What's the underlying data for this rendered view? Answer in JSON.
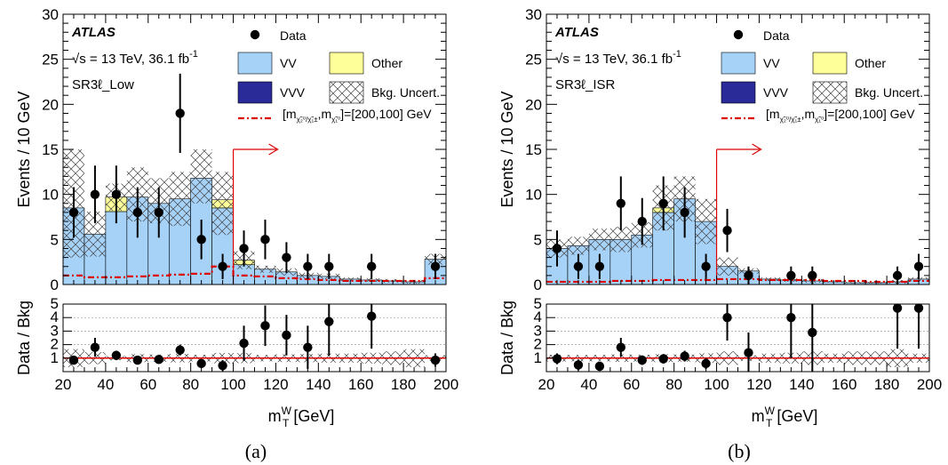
{
  "chart_data": [
    {
      "type": "bar",
      "caption": "(a)",
      "experiment": "ATLAS",
      "energy_label": "√s = 13 TeV, 36.1 fb",
      "energy_sup": "-1",
      "region_label": "SR3ℓ_Low",
      "ylabel": "Events / 10 GeV",
      "ratio_ylabel": "Data / Bkg",
      "xlabel": "m",
      "xlabel_sup": "W",
      "xlabel_sub": "T",
      "xlabel_unit": " [GeV]",
      "xlim": [
        20,
        200
      ],
      "ylim": [
        0,
        30
      ],
      "ratio_ylim": [
        0,
        5
      ],
      "xticks": [
        "20",
        "40",
        "60",
        "80",
        "100",
        "120",
        "140",
        "160",
        "180",
        "200"
      ],
      "yticks": [
        "0",
        "5",
        "10",
        "15",
        "20",
        "25",
        "30"
      ],
      "ratio_yticks": [
        "1",
        "2",
        "3",
        "4",
        "5"
      ],
      "legend": {
        "data": "Data",
        "vv": "VV",
        "other": "Other",
        "vvv": "VVV",
        "unc": "Bkg. Uncert.",
        "signal": "[m",
        "signal_tail": "]=[200,100] GeV"
      },
      "colors": {
        "vv": "#a6d2f8",
        "other": "#ffff99",
        "vvv": "#2a2a99",
        "signal": "#dd0000",
        "cut": "#dd0000"
      },
      "cut_x": 100,
      "bin_edges": [
        20,
        30,
        40,
        50,
        60,
        70,
        80,
        90,
        100,
        110,
        120,
        130,
        140,
        150,
        160,
        170,
        180,
        190,
        200
      ],
      "vv": [
        8.5,
        5.6,
        8.1,
        9.7,
        9.0,
        9.5,
        11.8,
        8.5,
        2.2,
        1.7,
        1.4,
        1.0,
        0.9,
        0.6,
        0.5,
        0.4,
        0.3,
        2.8
      ],
      "other": [
        0,
        0,
        1.6,
        0,
        0,
        0,
        0,
        0.9,
        0.5,
        0,
        0,
        0,
        0,
        0,
        0,
        0,
        0,
        0
      ],
      "vvv": [
        0,
        0,
        0,
        0,
        0,
        0,
        0,
        0,
        0,
        0,
        0,
        0,
        0,
        0,
        0,
        0,
        0,
        0
      ],
      "total": [
        9.0,
        5.6,
        9.7,
        10.0,
        9.3,
        9.5,
        12.0,
        9.0,
        2.7,
        1.7,
        1.4,
        1.0,
        0.9,
        0.6,
        0.5,
        0.4,
        0.3,
        2.8
      ],
      "unc": [
        6.0,
        2.5,
        1.5,
        3.0,
        2.5,
        3.0,
        3.0,
        3.5,
        1.0,
        0.4,
        0.4,
        0.3,
        0.3,
        0.2,
        0.2,
        0.2,
        0.2,
        0.6
      ],
      "signal": [
        1.0,
        0.8,
        0.8,
        0.9,
        1.0,
        1.1,
        1.2,
        2.0,
        1.0,
        0.9,
        0.7,
        0.6,
        0.5,
        0.4,
        0.4,
        0.4,
        0.4,
        0.7
      ],
      "data_x": [
        25,
        35,
        45,
        55,
        65,
        75,
        85,
        95,
        105,
        115,
        125,
        135,
        145,
        165,
        195
      ],
      "data_y": [
        8,
        10,
        10,
        8,
        8,
        19,
        5,
        2,
        4,
        5,
        3,
        2,
        2,
        2,
        2
      ],
      "data_err": [
        2.8,
        3.2,
        3.2,
        2.8,
        2.8,
        4.4,
        2.2,
        1.4,
        2.0,
        2.2,
        1.7,
        1.4,
        1.4,
        1.4,
        1.4
      ],
      "ratio_y": [
        0.85,
        1.8,
        1.2,
        0.85,
        0.9,
        1.6,
        0.6,
        0.45,
        2.1,
        3.4,
        2.7,
        1.8,
        3.7,
        4.1,
        0.85
      ],
      "ratio_err": [
        0.3,
        0.7,
        0.35,
        0.3,
        0.3,
        0.4,
        0.3,
        0.4,
        1.3,
        1.5,
        1.5,
        1.6,
        2.5,
        2.4,
        0.5
      ]
    },
    {
      "type": "bar",
      "caption": "(b)",
      "experiment": "ATLAS",
      "energy_label": "√s = 13 TeV, 36.1 fb",
      "energy_sup": "-1",
      "region_label": "SR3ℓ_ISR",
      "ylabel": "Events / 10 GeV",
      "ratio_ylabel": "Data / Bkg",
      "xlabel": "m",
      "xlabel_sup": "W",
      "xlabel_sub": "T",
      "xlabel_unit": " [GeV]",
      "xlim": [
        20,
        200
      ],
      "ylim": [
        0,
        30
      ],
      "ratio_ylim": [
        0,
        5
      ],
      "xticks": [
        "20",
        "40",
        "60",
        "80",
        "100",
        "120",
        "140",
        "160",
        "180",
        "200"
      ],
      "yticks": [
        "0",
        "5",
        "10",
        "15",
        "20",
        "25",
        "30"
      ],
      "ratio_yticks": [
        "1",
        "2",
        "3",
        "4",
        "5"
      ],
      "legend": {
        "data": "Data",
        "vv": "VV",
        "other": "Other",
        "vvv": "VVV",
        "unc": "Bkg. Uncert.",
        "signal": "[m",
        "signal_tail": "]=[200,100] GeV"
      },
      "colors": {
        "vv": "#a6d2f8",
        "other": "#ffff99",
        "vvv": "#2a2a99",
        "signal": "#dd0000",
        "cut": "#dd0000"
      },
      "cut_x": 100,
      "bin_edges": [
        20,
        30,
        40,
        50,
        60,
        70,
        80,
        90,
        100,
        110,
        120,
        130,
        140,
        150,
        160,
        170,
        180,
        190,
        200
      ],
      "vv": [
        4.0,
        4.3,
        5.0,
        5.0,
        5.5,
        8.0,
        9.5,
        7.0,
        2.0,
        1.5,
        0.6,
        0.5,
        0.4,
        0.3,
        0.2,
        0.2,
        0.3,
        0.6
      ],
      "other": [
        0,
        0,
        0,
        0,
        0,
        0.5,
        0,
        0,
        0,
        0,
        0,
        0,
        0,
        0,
        0,
        0,
        0,
        0
      ],
      "vvv": [
        0,
        0,
        0,
        0,
        0,
        0,
        0,
        0,
        0,
        0,
        0,
        0,
        0,
        0,
        0,
        0,
        0,
        0
      ],
      "total": [
        4.0,
        4.3,
        5.0,
        5.0,
        5.5,
        8.5,
        9.5,
        7.0,
        2.0,
        1.5,
        0.6,
        0.5,
        0.4,
        0.3,
        0.2,
        0.2,
        0.3,
        0.6
      ],
      "unc": [
        1.0,
        1.0,
        1.2,
        1.4,
        1.4,
        2.5,
        2.5,
        2.5,
        1.0,
        0.3,
        0.2,
        0.2,
        0.2,
        0.1,
        0.1,
        0.1,
        0.2,
        0.2
      ],
      "signal": [
        0.3,
        0.3,
        0.3,
        0.4,
        0.4,
        0.5,
        0.5,
        0.5,
        0.6,
        0.6,
        0.5,
        0.5,
        0.5,
        0.4,
        0.4,
        0.3,
        0.3,
        0.4
      ],
      "data_x": [
        25,
        35,
        45,
        55,
        65,
        75,
        85,
        95,
        105,
        115,
        135,
        145,
        185,
        195
      ],
      "data_y": [
        4,
        2,
        2,
        9,
        7,
        9,
        8,
        2,
        6,
        1,
        1,
        1,
        1,
        2
      ],
      "data_err": [
        2.0,
        1.4,
        1.4,
        3.0,
        2.6,
        3.0,
        2.8,
        1.4,
        2.4,
        1.0,
        1.0,
        1.0,
        1.0,
        1.4
      ],
      "ratio_y": [
        0.95,
        0.5,
        0.4,
        1.8,
        0.85,
        0.95,
        1.15,
        0.6,
        4.0,
        1.4,
        4.0,
        2.9,
        4.7,
        4.7
      ],
      "ratio_err": [
        0.4,
        0.4,
        0.3,
        0.7,
        0.35,
        0.35,
        0.4,
        0.4,
        1.7,
        1.5,
        3.0,
        2.9,
        3.0,
        3.0
      ]
    }
  ]
}
